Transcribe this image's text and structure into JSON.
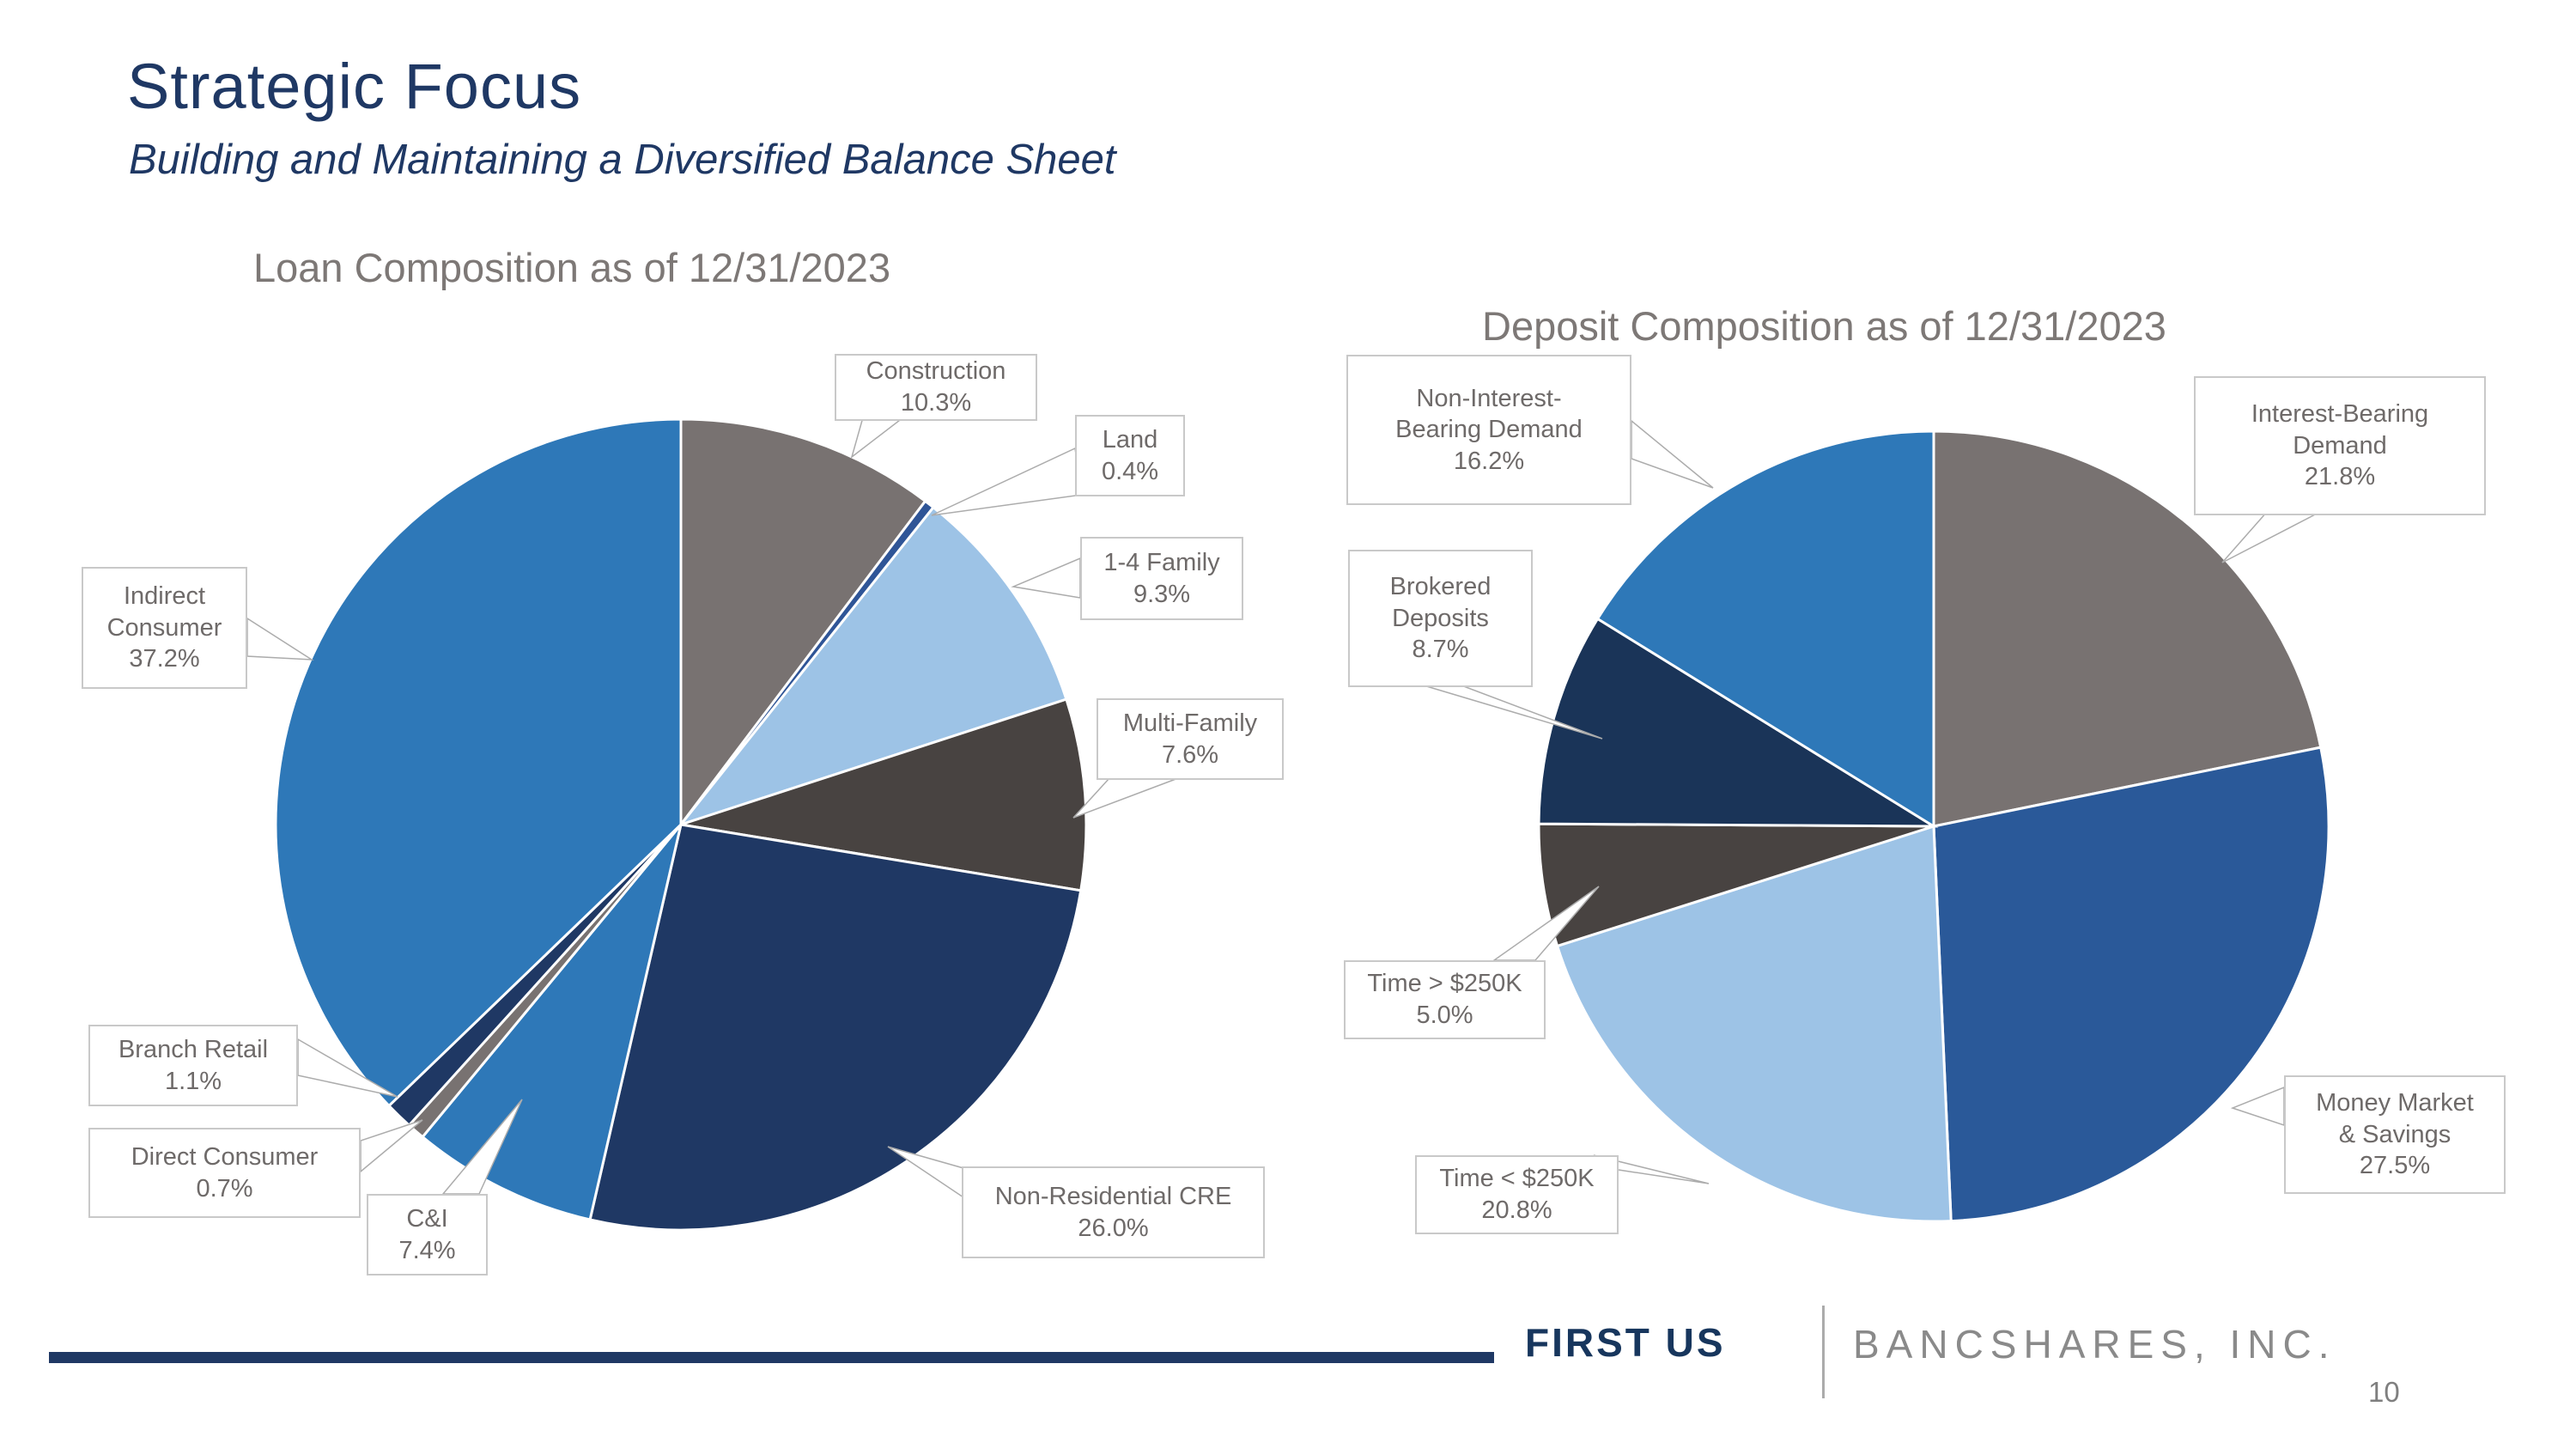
{
  "slide": {
    "title": "Strategic Focus",
    "subtitle": "Building and Maintaining a Diversified Balance Sheet"
  },
  "footer": {
    "brand_primary": "FIRST US",
    "brand_secondary": "BANCSHARES, INC.",
    "page_number": "10"
  },
  "colors": {
    "navy": "#1F3864",
    "medium_navy": "#2F5597",
    "blue": "#2E78B8",
    "light_blue": "#9DC3E6",
    "gray": "#787271",
    "charcoal": "#484341",
    "title_navy": "#1F3864",
    "label_text": "#6E6A69",
    "chart_title_gray": "#7D7876"
  },
  "chart_data": [
    {
      "type": "pie",
      "title": "Loan Composition as of 12/31/2023",
      "start_angle_deg": 0,
      "direction": "clockwise",
      "slices": [
        {
          "label": "Construction",
          "lines": [
            "Construction"
          ],
          "value": 10.3,
          "pct": "10.3%",
          "color": "#787271"
        },
        {
          "label": "Land",
          "lines": [
            "Land"
          ],
          "value": 0.4,
          "pct": "0.4%",
          "color": "#2F5597"
        },
        {
          "label": "1-4 Family",
          "lines": [
            "1-4 Family"
          ],
          "value": 9.3,
          "pct": "9.3%",
          "color": "#9DC3E6"
        },
        {
          "label": "Multi-Family",
          "lines": [
            "Multi-Family"
          ],
          "value": 7.6,
          "pct": "7.6%",
          "color": "#484341"
        },
        {
          "label": "Non-Residential CRE",
          "lines": [
            "Non-Residential CRE"
          ],
          "value": 26.0,
          "pct": "26.0%",
          "color": "#1F3864"
        },
        {
          "label": "C&I",
          "lines": [
            "C&I"
          ],
          "value": 7.4,
          "pct": "7.4%",
          "color": "#2E78B8"
        },
        {
          "label": "Direct Consumer",
          "lines": [
            "Direct Consumer"
          ],
          "value": 0.7,
          "pct": "0.7%",
          "color": "#787271"
        },
        {
          "label": "Branch Retail",
          "lines": [
            "Branch Retail"
          ],
          "value": 1.1,
          "pct": "1.1%",
          "color": "#1F3864"
        },
        {
          "label": "Indirect Consumer",
          "lines": [
            "Indirect",
            "Consumer"
          ],
          "value": 37.2,
          "pct": "37.2%",
          "color": "#2E78B8"
        }
      ]
    },
    {
      "type": "pie",
      "title": "Deposit Composition as of 12/31/2023",
      "start_angle_deg": 0,
      "direction": "clockwise",
      "slices": [
        {
          "label": "Interest-Bearing Demand",
          "lines": [
            "Interest-Bearing",
            "Demand"
          ],
          "value": 21.8,
          "pct": "21.8%",
          "color": "#787271"
        },
        {
          "label": "Money Market & Savings",
          "lines": [
            "Money Market",
            "& Savings"
          ],
          "value": 27.5,
          "pct": "27.5%",
          "color": "#2A5999"
        },
        {
          "label": "Time < $250K",
          "lines": [
            "Time < $250K"
          ],
          "value": 20.8,
          "pct": "20.8%",
          "color": "#9DC3E6"
        },
        {
          "label": "Time > $250K",
          "lines": [
            "Time > $250K"
          ],
          "value": 5.0,
          "pct": "5.0%",
          "color": "#484341"
        },
        {
          "label": "Brokered Deposits",
          "lines": [
            "Brokered",
            "Deposits"
          ],
          "value": 8.7,
          "pct": "8.7%",
          "color": "#1A3458"
        },
        {
          "label": "Non-Interest-Bearing Demand",
          "lines": [
            "Non-Interest-",
            "Bearing Demand"
          ],
          "value": 16.2,
          "pct": "16.2%",
          "color": "#2E78B8"
        }
      ]
    }
  ]
}
